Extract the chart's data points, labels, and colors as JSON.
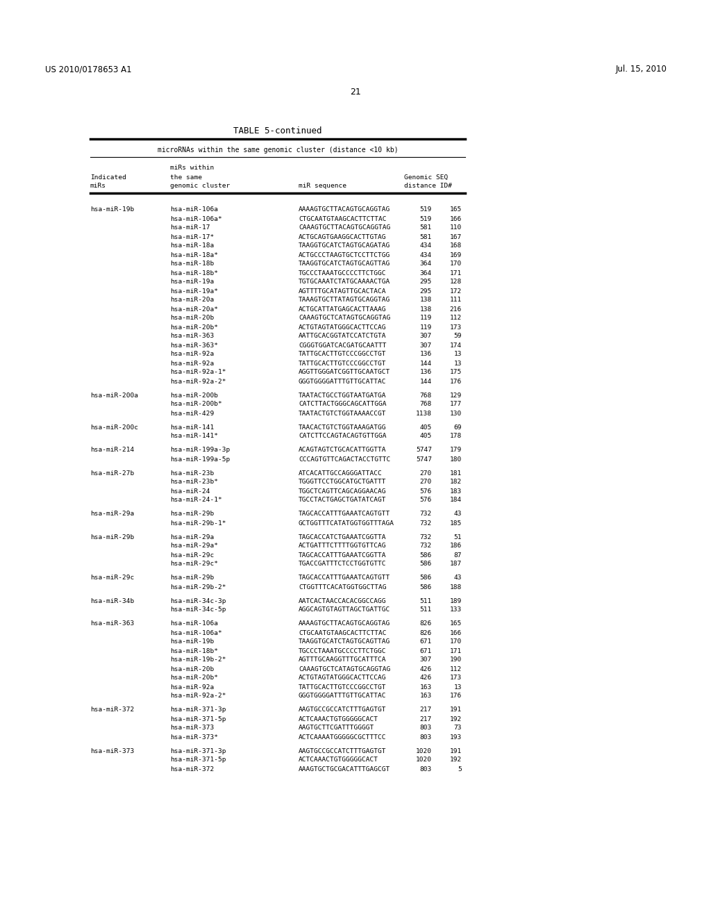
{
  "header_left": "US 2010/0178653 A1",
  "header_right": "Jul. 15, 2010",
  "page_number": "21",
  "table_title": "TABLE 5-continued",
  "table_subtitle": "microRNAs within the same genomic cluster (distance <10 kb)",
  "rows": [
    [
      "hsa-miR-19b",
      "hsa-miR-106a",
      "AAAAGTGCTTACAGTGCAGGTAG",
      "519",
      "165"
    ],
    [
      "",
      "hsa-miR-106a*",
      "CTGCAATGTAAGCACTTCTTAC",
      "519",
      "166"
    ],
    [
      "",
      "hsa-miR-17",
      "CAAAGTGCTTACAGTGCAGGTAG",
      "581",
      "110"
    ],
    [
      "",
      "hsa-miR-17*",
      "ACTGCAGTGAAGGCACTTGTAG",
      "581",
      "167"
    ],
    [
      "",
      "hsa-miR-18a",
      "TAAGGTGCATCTAGTGCAGATAG",
      "434",
      "168"
    ],
    [
      "",
      "hsa-miR-18a*",
      "ACTGCCCTAAGTGCTCCTTCTGG",
      "434",
      "169"
    ],
    [
      "",
      "hsa-miR-18b",
      "TAAGGTGCATCTAGTGCAGTTAG",
      "364",
      "170"
    ],
    [
      "",
      "hsa-miR-18b*",
      "TGCCCTAAATGCCCCTTCTGGC",
      "364",
      "171"
    ],
    [
      "",
      "hsa-miR-19a",
      "TGTGCAAATCTATGCAAAACTGA",
      "295",
      "128"
    ],
    [
      "",
      "hsa-miR-19a*",
      "AGTTTTGCATAGTTGCACTACA",
      "295",
      "172"
    ],
    [
      "",
      "hsa-miR-20a",
      "TAAAGTGCTTATAGTGCAGGTAG",
      "138",
      "111"
    ],
    [
      "",
      "hsa-miR-20a*",
      "ACTGCATTATGAGCACTTAAAG",
      "138",
      "216"
    ],
    [
      "",
      "hsa-miR-20b",
      "CAAAGTGCTCATAGTGCAGGTAG",
      "119",
      "112"
    ],
    [
      "",
      "hsa-miR-20b*",
      "ACTGTAGTATGGGCACTTCCAG",
      "119",
      "173"
    ],
    [
      "",
      "hsa-miR-363",
      "AATTGCACGGTATCCATCTGTA",
      "307",
      "59"
    ],
    [
      "",
      "hsa-miR-363*",
      "CGGGTGGATCACGATGCAATTT",
      "307",
      "174"
    ],
    [
      "",
      "hsa-miR-92a",
      "TATTGCACTTGTCCCGGCCTGT",
      "136",
      "13"
    ],
    [
      "",
      "hsa-miR-92a",
      "TATTGCACTTGTCCCGGCCTGT",
      "144",
      "13"
    ],
    [
      "",
      "hsa-miR-92a-1*",
      "AGGTTGGGATCGGTTGCAATGCT",
      "136",
      "175"
    ],
    [
      "",
      "hsa-miR-92a-2*",
      "GGGTGGGGATTTGTTGCATTAC",
      "144",
      "176"
    ],
    [
      "hsa-miR-200a",
      "hsa-miR-200b",
      "TAATACTGCCTGGTAATGATGA",
      "768",
      "129"
    ],
    [
      "",
      "hsa-miR-200b*",
      "CATCTTACTGGGCAGCATTGGA",
      "768",
      "177"
    ],
    [
      "",
      "hsa-miR-429",
      "TAATACTGTCTGGTAAAACCGT",
      "1138",
      "130"
    ],
    [
      "hsa-miR-200c",
      "hsa-miR-141",
      "TAACACTGTCTGGTAAAGATGG",
      "405",
      "69"
    ],
    [
      "",
      "hsa-miR-141*",
      "CATCTTCCAGTACAGTGTTGGA",
      "405",
      "178"
    ],
    [
      "hsa-miR-214",
      "hsa-miR-199a-3p",
      "ACAGTAGTCTGCACATTGGTTA",
      "5747",
      "179"
    ],
    [
      "",
      "hsa-miR-199a-5p",
      "CCCAGTGTTCAGACTACCTGTTC",
      "5747",
      "180"
    ],
    [
      "hsa-miR-27b",
      "hsa-miR-23b",
      "ATCACATTGCCAGGGATTACC",
      "270",
      "181"
    ],
    [
      "",
      "hsa-miR-23b*",
      "TGGGTTCCTGGCATGCTGATTT",
      "270",
      "182"
    ],
    [
      "",
      "hsa-miR-24",
      "TGGCTCAGTTCAGCAGGAACAG",
      "576",
      "183"
    ],
    [
      "",
      "hsa-miR-24-1*",
      "TGCCTACTGAGCTGATATCAGT",
      "576",
      "184"
    ],
    [
      "hsa-miR-29a",
      "hsa-miR-29b",
      "TAGCACCATTTGAAATCAGTGTT",
      "732",
      "43"
    ],
    [
      "",
      "hsa-miR-29b-1*",
      "GCTGGTTTCATATGGTGGTTTAGA",
      "732",
      "185"
    ],
    [
      "hsa-miR-29b",
      "hsa-miR-29a",
      "TAGCACCATCTGAAATCGGTTA",
      "732",
      "51"
    ],
    [
      "",
      "hsa-miR-29a*",
      "ACTGATTTCTTTTGGTGTTCAG",
      "732",
      "186"
    ],
    [
      "",
      "hsa-miR-29c",
      "TAGCACCATTTGAAATCGGTTA",
      "586",
      "87"
    ],
    [
      "",
      "hsa-miR-29c*",
      "TGACCGATTTCTCCTGGTGTTC",
      "586",
      "187"
    ],
    [
      "hsa-miR-29c",
      "hsa-miR-29b",
      "TAGCACCATTTGAAATCAGTGTT",
      "586",
      "43"
    ],
    [
      "",
      "hsa-miR-29b-2*",
      "CTGGTTTCACATGGTGGCTTAG",
      "586",
      "188"
    ],
    [
      "hsa-miR-34b",
      "hsa-miR-34c-3p",
      "AATCACTAACCACACGGCCAGG",
      "511",
      "189"
    ],
    [
      "",
      "hsa-miR-34c-5p",
      "AGGCAGTGTAGTTAGCTGATTGC",
      "511",
      "133"
    ],
    [
      "hsa-miR-363",
      "hsa-miR-106a",
      "AAAAGTGCTTACAGTGCAGGTAG",
      "826",
      "165"
    ],
    [
      "",
      "hsa-miR-106a*",
      "CTGCAATGTAAGCACTTCTTAC",
      "826",
      "166"
    ],
    [
      "",
      "hsa-miR-19b",
      "TAAGGTGCATCTAGTGCAGTTAG",
      "671",
      "170"
    ],
    [
      "",
      "hsa-miR-18b*",
      "TGCCCTAAATGCCCCTTCTGGC",
      "671",
      "171"
    ],
    [
      "",
      "hsa-miR-19b-2*",
      "AGTTTGCAAGGTTTGCATTTCA",
      "307",
      "190"
    ],
    [
      "",
      "hsa-miR-20b",
      "CAAAGTGCTCATAGTGCAGGTAG",
      "426",
      "112"
    ],
    [
      "",
      "hsa-miR-20b*",
      "ACTGTAGTATGGGCACTTCCAG",
      "426",
      "173"
    ],
    [
      "",
      "hsa-miR-92a",
      "TATTGCACTTGTCCCGGCCTGT",
      "163",
      "13"
    ],
    [
      "",
      "hsa-miR-92a-2*",
      "GGGTGGGGATTTGTTGCATTAC",
      "163",
      "176"
    ],
    [
      "hsa-miR-372",
      "hsa-miR-371-3p",
      "AAGTGCCGCCATCTTTGAGTGT",
      "217",
      "191"
    ],
    [
      "",
      "hsa-miR-371-5p",
      "ACTCAAACTGTGGGGGCACT",
      "217",
      "192"
    ],
    [
      "",
      "hsa-miR-373",
      "AAGTGCTTCGATTTGGGGT",
      "803",
      "73"
    ],
    [
      "",
      "hsa-miR-373*",
      "ACTCAAAATGGGGGCGCTTTCC",
      "803",
      "193"
    ],
    [
      "hsa-miR-373",
      "hsa-miR-371-3p",
      "AAGTGCCGCCATCTTTGAGTGT",
      "1020",
      "191"
    ],
    [
      "",
      "hsa-miR-371-5p",
      "ACTCAAACTGTGGGGGCACT",
      "1020",
      "192"
    ],
    [
      "",
      "hsa-miR-372",
      "AAAGTGCTGCGACATTTGAGCGT",
      "803",
      "5"
    ]
  ],
  "bg_color": "#ffffff",
  "text_color": "#000000",
  "data_font_size": 6.8,
  "header_patent_size": 8.5,
  "title_size": 9.0,
  "subtitle_size": 7.0
}
